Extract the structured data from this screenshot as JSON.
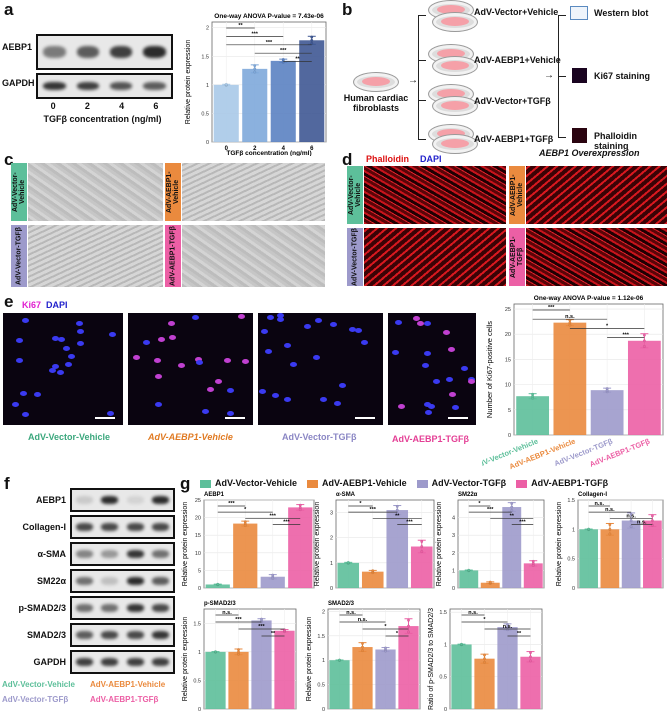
{
  "panels": {
    "a": "a",
    "b": "b",
    "c": "c",
    "d": "d",
    "e": "e",
    "f": "f",
    "g": "g"
  },
  "colors": {
    "vector_vehicle": "#5dbf9a",
    "aebp1_vehicle": "#ea8a3e",
    "vector_tgfb": "#9d9acb",
    "aebp1_tgfb": "#ec5fa5"
  },
  "groups": [
    "AdV-Vector-Vehicle",
    "AdV-AEBP1-Vehicle",
    "AdV-Vector-TGFβ",
    "AdV-AEBP1-TGFβ"
  ],
  "a": {
    "blot_rows": [
      "AEBP1",
      "GAPDH"
    ],
    "lanes": [
      "0",
      "2",
      "4",
      "6"
    ],
    "xlabel": "TGFβ concentration (ng/ml)"
  },
  "b": {
    "source": "Human cardiac fibroblasts",
    "conditions": [
      "AdV-Vector+Vehicle",
      "AdV-AEBP1+Vehicle",
      "AdV-Vector+TGFβ",
      "AdV-AEBP1+TGFβ"
    ],
    "assays": [
      "Western blot",
      "Ki67 staining",
      "Phalloidin staining"
    ],
    "caption": "AEBP1 Overexpression"
  },
  "d": {
    "stain1": "Phalloidin",
    "stain2": "DAPI"
  },
  "e": {
    "stain1": "Ki67",
    "stain2": "DAPI"
  },
  "f": {
    "blot_rows": [
      "AEBP1",
      "Collagen-I",
      "α-SMA",
      "SM22α",
      "p-SMAD2/3",
      "SMAD2/3",
      "GAPDH"
    ]
  },
  "chart_data": [
    {
      "id": "a",
      "type": "bar",
      "title": "One-way ANOVA P-value = 7.43e-06",
      "categories": [
        "0",
        "2",
        "4",
        "6"
      ],
      "values": [
        1.0,
        1.28,
        1.42,
        1.78
      ],
      "errors": [
        0.01,
        0.07,
        0.03,
        0.07
      ],
      "ylim": [
        0,
        2.1
      ],
      "yticks": [
        0,
        0.5,
        1.0,
        1.5,
        2.0
      ],
      "ylabel": "Relative protein expression",
      "xlabel": "TGFβ concentration (ng/ml)",
      "colors": [
        "#a8c9e8",
        "#7ea8da",
        "#5b82c2",
        "#3f5893"
      ],
      "sig": [
        [
          0,
          1,
          "**"
        ],
        [
          0,
          2,
          "***"
        ],
        [
          0,
          3,
          "***"
        ],
        [
          1,
          3,
          "***"
        ],
        [
          2,
          3,
          "**"
        ]
      ]
    },
    {
      "id": "e",
      "type": "bar",
      "title": "One-way ANOVA P-value = 1.12e-06",
      "categories": [
        "AdV-Vector-Vehicle",
        "AdV-AEBP1-Vehicle",
        "AdV-Vector-TGFβ",
        "AdV-AEBP1-TGFβ"
      ],
      "values": [
        7.7,
        22.3,
        8.9,
        18.7
      ],
      "errors": [
        0.5,
        0.6,
        0.4,
        1.4
      ],
      "ylim": [
        0,
        26
      ],
      "yticks": [
        0,
        5,
        10,
        15,
        20,
        25
      ],
      "ylabel": "Number of Ki67-positive cells",
      "sig": [
        [
          0,
          1,
          "***"
        ],
        [
          0,
          2,
          "n.s."
        ],
        [
          1,
          3,
          "*"
        ],
        [
          2,
          3,
          "***"
        ]
      ]
    },
    {
      "id": "g1",
      "type": "bar",
      "title": "AEBP1",
      "values": [
        1.0,
        18.3,
        3.2,
        22.9
      ],
      "errors": [
        0.1,
        0.7,
        0.6,
        0.8
      ],
      "ylim": [
        0,
        25
      ],
      "yticks": [
        0,
        5,
        10,
        15,
        20,
        25
      ],
      "ylabel": "Relative protein expression",
      "sig": [
        [
          0,
          1,
          "***"
        ],
        [
          0,
          2,
          "*"
        ],
        [
          1,
          3,
          "***"
        ],
        [
          2,
          3,
          "***"
        ]
      ]
    },
    {
      "id": "g2",
      "type": "bar",
      "title": "α-SMA",
      "values": [
        1.0,
        0.65,
        3.1,
        1.65
      ],
      "errors": [
        0.02,
        0.05,
        0.18,
        0.25
      ],
      "ylim": [
        0,
        3.5
      ],
      "yticks": [
        0,
        1,
        2,
        3
      ],
      "ylabel": "Relative protein expression",
      "sig": [
        [
          0,
          1,
          "*"
        ],
        [
          0,
          2,
          "***"
        ],
        [
          1,
          3,
          "**"
        ],
        [
          2,
          3,
          "***"
        ]
      ]
    },
    {
      "id": "g3",
      "type": "bar",
      "title": "SM22α",
      "values": [
        1.0,
        0.3,
        4.6,
        1.4
      ],
      "errors": [
        0.02,
        0.05,
        0.25,
        0.15
      ],
      "ylim": [
        0,
        5
      ],
      "yticks": [
        0,
        1,
        2,
        3,
        4
      ],
      "ylabel": "Relative protein expression",
      "sig": [
        [
          0,
          1,
          "*"
        ],
        [
          0,
          2,
          "***"
        ],
        [
          1,
          3,
          "**"
        ],
        [
          2,
          3,
          "***"
        ]
      ]
    },
    {
      "id": "g4",
      "type": "bar",
      "title": "Collagen-I",
      "values": [
        1.0,
        1.0,
        1.15,
        1.15
      ],
      "errors": [
        0.005,
        0.1,
        0.13,
        0.1
      ],
      "ylim": [
        0,
        1.5
      ],
      "yticks": [
        0,
        0.5,
        1.0,
        1.5
      ],
      "ylabel": "Relative protein expression",
      "sig": [
        [
          0,
          1,
          "n.s."
        ],
        [
          0,
          2,
          "n.s."
        ],
        [
          1,
          3,
          "n.s."
        ],
        [
          2,
          3,
          "n.s."
        ]
      ]
    },
    {
      "id": "g5",
      "type": "bar",
      "title": "p-SMAD2/3",
      "values": [
        1.0,
        1.0,
        1.55,
        1.37
      ],
      "errors": [
        0.005,
        0.05,
        0.03,
        0.02
      ],
      "ylim": [
        0,
        1.75
      ],
      "yticks": [
        0,
        0.5,
        1.0,
        1.5
      ],
      "ylabel": "Relative protein expression",
      "sig": [
        [
          0,
          1,
          "n.s."
        ],
        [
          0,
          2,
          "***"
        ],
        [
          1,
          3,
          "***"
        ],
        [
          2,
          3,
          "**"
        ]
      ]
    },
    {
      "id": "g6",
      "type": "bar",
      "title": "SMAD2/3",
      "values": [
        1.0,
        1.27,
        1.22,
        1.7
      ],
      "errors": [
        0.005,
        0.09,
        0.04,
        0.15
      ],
      "ylim": [
        0,
        2.05
      ],
      "yticks": [
        0,
        0.5,
        1.0,
        1.5,
        2.0
      ],
      "ylabel": "Relative protein expression",
      "sig": [
        [
          0,
          1,
          "n.s."
        ],
        [
          0,
          2,
          "n.s."
        ],
        [
          1,
          3,
          "*"
        ],
        [
          2,
          3,
          "*"
        ]
      ]
    },
    {
      "id": "g7",
      "type": "bar",
      "title": "",
      "values": [
        1.0,
        0.78,
        1.27,
        0.81
      ],
      "errors": [
        0.005,
        0.07,
        0.05,
        0.08
      ],
      "ylim": [
        0,
        1.55
      ],
      "yticks": [
        0,
        0.5,
        1.0,
        1.5
      ],
      "ylabel": "Ratio of p-SMAD2/3 to SMAD2/3",
      "sig": [
        [
          0,
          1,
          "n.s."
        ],
        [
          0,
          2,
          "*"
        ],
        [
          1,
          3,
          "n.s."
        ],
        [
          2,
          3,
          "**"
        ]
      ]
    }
  ]
}
